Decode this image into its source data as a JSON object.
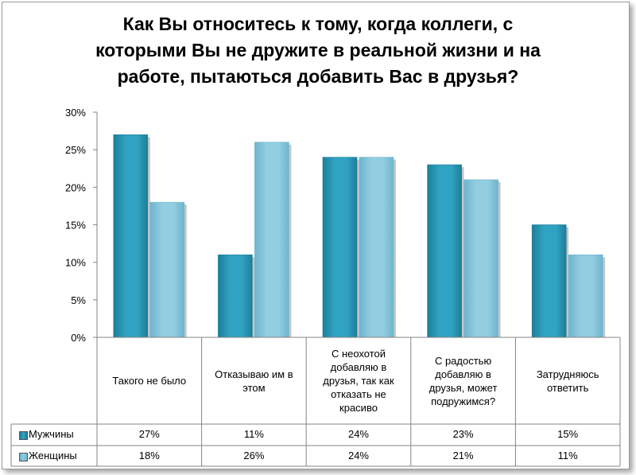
{
  "chart_data": {
    "type": "bar",
    "title_lines": [
      "Как Вы относитесь к тому, когда коллеги, с",
      "которыми Вы не дружите в реальной жизни и на",
      "работе, пытаються добавить Вас в друзья?"
    ],
    "categories": [
      "Такого не было",
      "Отказываю им в этом",
      "С неохотой добавляю в друзья, так как отказать не красиво",
      "С радостью добавляю в друзья, может подружимся?",
      "Затрудняюсь ответить"
    ],
    "category_lines": [
      [
        "Такого не было"
      ],
      [
        "Отказываю им в",
        "этом"
      ],
      [
        "С неохотой",
        "добавляю в",
        "друзья, так как",
        "отказать не",
        "красиво"
      ],
      [
        "С радостью",
        "добавляю в",
        "друзья, может",
        "подружимся?"
      ],
      [
        "Затрудняюсь",
        "ответить"
      ]
    ],
    "series": [
      {
        "name": "Мужчины",
        "values": [
          27,
          11,
          24,
          23,
          15
        ],
        "labels": [
          "27%",
          "11%",
          "24%",
          "23%",
          "15%"
        ],
        "color": "#31a3c2",
        "dark": "#1d7e99"
      },
      {
        "name": "Женщины",
        "values": [
          18,
          26,
          24,
          21,
          11
        ],
        "labels": [
          "18%",
          "26%",
          "24%",
          "21%",
          "11%"
        ],
        "color": "#93cde0",
        "dark": "#6db5cf"
      }
    ],
    "ylim": [
      0,
      30
    ],
    "yticks": [
      "0%",
      "5%",
      "10%",
      "15%",
      "20%",
      "25%",
      "30%"
    ],
    "grid": false,
    "legend": "data-table"
  }
}
